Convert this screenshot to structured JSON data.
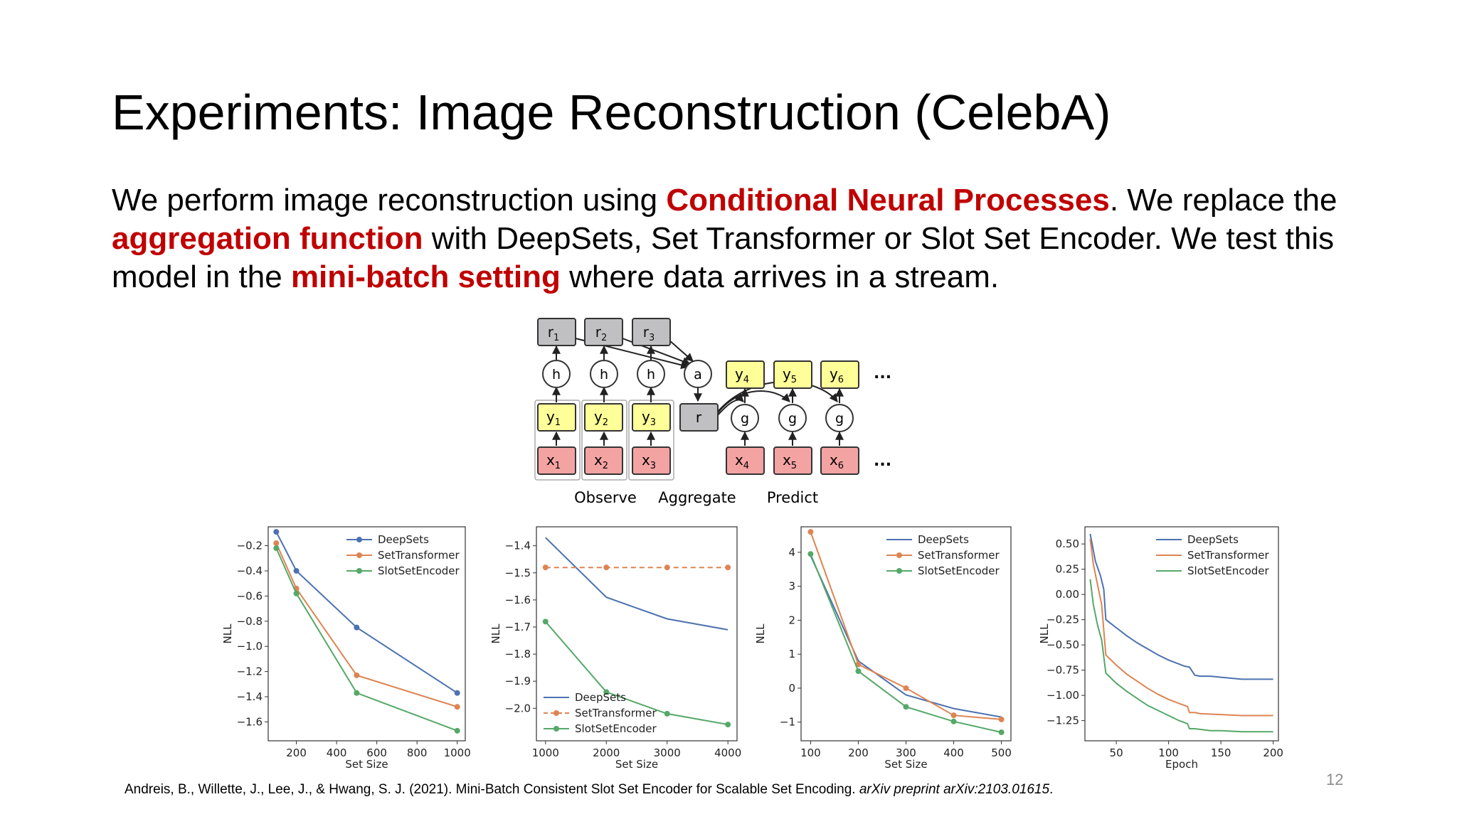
{
  "slide": {
    "title": "Experiments: Image Reconstruction (CelebA)",
    "body": {
      "t1": "We perform image reconstruction using ",
      "h1": "Conditional Neural Processes",
      "t2": ". We replace the ",
      "h2": "aggregation function",
      "t3": " with DeepSets, Set Transformer or Slot Set Encoder. We test this model in the ",
      "h3": "mini-batch setting",
      "t4": " where data arrives in a stream."
    },
    "citation": {
      "text": "Andreis, B., Willette, J., Lee, J., & Hwang, S. J. (2021). Mini-Batch Consistent Slot Set Encoder for Scalable Set Encoding. ",
      "venue": "arXiv preprint arXiv:2103.01615",
      "end": "."
    },
    "page_number": "12",
    "accent_color": "#c00000"
  },
  "diagram": {
    "r_nodes": [
      "r",
      "r",
      "r"
    ],
    "r_subs": [
      "1",
      "2",
      "3"
    ],
    "h_label": "h",
    "a_label": "a",
    "r_label": "r",
    "g_label": "g",
    "y_obs": [
      "y",
      "y",
      "y"
    ],
    "y_obs_subs": [
      "1",
      "2",
      "3"
    ],
    "x_obs": [
      "x",
      "x",
      "x"
    ],
    "x_obs_subs": [
      "1",
      "2",
      "3"
    ],
    "y_pred": [
      "y",
      "y",
      "y"
    ],
    "y_pred_subs": [
      "4",
      "5",
      "6"
    ],
    "x_pred": [
      "x",
      "x",
      "x"
    ],
    "x_pred_subs": [
      "4",
      "5",
      "6"
    ],
    "ellipsis": "...",
    "stage_labels": [
      "Observe",
      "Aggregate",
      "Predict"
    ],
    "colors": {
      "r": "#c0c0c2",
      "y": "#ffff99",
      "x": "#f4a3a3"
    }
  },
  "chart_data": [
    {
      "type": "line",
      "xlabel": "Set Size",
      "ylabel": "NLL",
      "xlim": [
        60,
        1040
      ],
      "ylim": [
        -1.75,
        -0.05
      ],
      "xticks": [
        200,
        400,
        600,
        800,
        1000
      ],
      "yticks": [
        -0.2,
        -0.4,
        -0.6,
        -0.8,
        -1.0,
        -1.2,
        -1.4,
        -1.6
      ],
      "legend": "top-right",
      "series": [
        {
          "name": "DeepSets",
          "color": "#4c72b0",
          "marker": true,
          "dashed": false,
          "x": [
            100,
            200,
            500,
            1000
          ],
          "y": [
            -0.09,
            -0.4,
            -0.85,
            -1.37
          ]
        },
        {
          "name": "SetTransformer",
          "color": "#dd8452",
          "marker": true,
          "dashed": false,
          "x": [
            100,
            200,
            500,
            1000
          ],
          "y": [
            -0.18,
            -0.54,
            -1.23,
            -1.48
          ]
        },
        {
          "name": "SlotSetEncoder",
          "color": "#55a868",
          "marker": true,
          "dashed": false,
          "x": [
            100,
            200,
            500,
            1000
          ],
          "y": [
            -0.22,
            -0.58,
            -1.37,
            -1.67
          ]
        }
      ]
    },
    {
      "type": "line",
      "xlabel": "Set Size",
      "ylabel": "NLL",
      "xlim": [
        850,
        4150
      ],
      "ylim": [
        -2.12,
        -1.33
      ],
      "xticks": [
        1000,
        2000,
        3000,
        4000
      ],
      "yticks": [
        -1.4,
        -1.5,
        -1.6,
        -1.7,
        -1.8,
        -1.9,
        -2.0
      ],
      "legend": "bottom-left",
      "series": [
        {
          "name": "DeepSets",
          "color": "#4c72b0",
          "marker": false,
          "dashed": false,
          "x": [
            1000,
            2000,
            3000,
            4000
          ],
          "y": [
            -1.37,
            -1.59,
            -1.67,
            -1.71
          ]
        },
        {
          "name": "SetTransformer",
          "color": "#dd8452",
          "marker": true,
          "dashed": true,
          "x": [
            1000,
            2000,
            3000,
            4000
          ],
          "y": [
            -1.48,
            -1.48,
            -1.48,
            -1.48
          ]
        },
        {
          "name": "SlotSetEncoder",
          "color": "#55a868",
          "marker": true,
          "dashed": false,
          "x": [
            1000,
            2000,
            3000,
            4000
          ],
          "y": [
            -1.68,
            -1.94,
            -2.02,
            -2.06
          ]
        }
      ]
    },
    {
      "type": "line",
      "xlabel": "Set Size",
      "ylabel": "NLL",
      "xlim": [
        80,
        520
      ],
      "ylim": [
        -1.55,
        4.75
      ],
      "xticks": [
        100,
        200,
        300,
        400,
        500
      ],
      "yticks": [
        4,
        3,
        2,
        1,
        0,
        -1
      ],
      "legend": "top-right",
      "series": [
        {
          "name": "DeepSets",
          "color": "#4c72b0",
          "marker": false,
          "dashed": false,
          "x": [
            100,
            200,
            300,
            400,
            500
          ],
          "y": [
            3.9,
            0.8,
            -0.2,
            -0.6,
            -0.85
          ]
        },
        {
          "name": "SetTransformer",
          "color": "#dd8452",
          "marker": true,
          "dashed": false,
          "x": [
            100,
            200,
            300,
            400,
            500
          ],
          "y": [
            4.6,
            0.7,
            0.0,
            -0.8,
            -0.92
          ]
        },
        {
          "name": "SlotSetEncoder",
          "color": "#55a868",
          "marker": true,
          "dashed": false,
          "x": [
            100,
            200,
            300,
            400,
            500
          ],
          "y": [
            3.95,
            0.5,
            -0.55,
            -0.98,
            -1.3
          ]
        }
      ]
    },
    {
      "type": "line",
      "xlabel": "Epoch",
      "ylabel": "NLL",
      "xlim": [
        20,
        205
      ],
      "ylim": [
        -1.45,
        0.67
      ],
      "xticks": [
        50,
        100,
        150,
        200
      ],
      "yticks": [
        0.5,
        0.25,
        0.0,
        -0.25,
        -0.5,
        -0.75,
        -1.0,
        -1.25
      ],
      "legend": "top-right",
      "series": [
        {
          "name": "DeepSets",
          "color": "#4c72b0",
          "marker": false,
          "dashed": false,
          "x": [
            25,
            30,
            35,
            38,
            40,
            50,
            60,
            70,
            80,
            90,
            100,
            110,
            115,
            120,
            125,
            130,
            140,
            150,
            170,
            185,
            200
          ],
          "y": [
            0.6,
            0.33,
            0.18,
            0.05,
            -0.25,
            -0.33,
            -0.41,
            -0.48,
            -0.54,
            -0.6,
            -0.65,
            -0.69,
            -0.71,
            -0.72,
            -0.8,
            -0.81,
            -0.81,
            -0.82,
            -0.84,
            -0.84,
            -0.84
          ]
        },
        {
          "name": "SetTransformer",
          "color": "#dd8452",
          "marker": false,
          "dashed": false,
          "x": [
            25,
            28,
            32,
            36,
            40,
            50,
            60,
            70,
            80,
            90,
            100,
            110,
            118,
            120,
            125,
            130,
            150,
            170,
            185,
            200
          ],
          "y": [
            0.55,
            0.3,
            0.1,
            -0.1,
            -0.6,
            -0.7,
            -0.79,
            -0.86,
            -0.93,
            -0.99,
            -1.04,
            -1.08,
            -1.11,
            -1.17,
            -1.17,
            -1.18,
            -1.19,
            -1.2,
            -1.2,
            -1.2
          ]
        },
        {
          "name": "SlotSetEncoder",
          "color": "#55a868",
          "marker": false,
          "dashed": false,
          "x": [
            25,
            28,
            32,
            36,
            40,
            50,
            60,
            70,
            80,
            90,
            100,
            110,
            118,
            120,
            125,
            140,
            150,
            170,
            185,
            200
          ],
          "y": [
            0.15,
            -0.1,
            -0.3,
            -0.45,
            -0.78,
            -0.88,
            -0.96,
            -1.03,
            -1.1,
            -1.15,
            -1.2,
            -1.25,
            -1.28,
            -1.33,
            -1.33,
            -1.35,
            -1.35,
            -1.36,
            -1.36,
            -1.36
          ]
        }
      ]
    }
  ]
}
